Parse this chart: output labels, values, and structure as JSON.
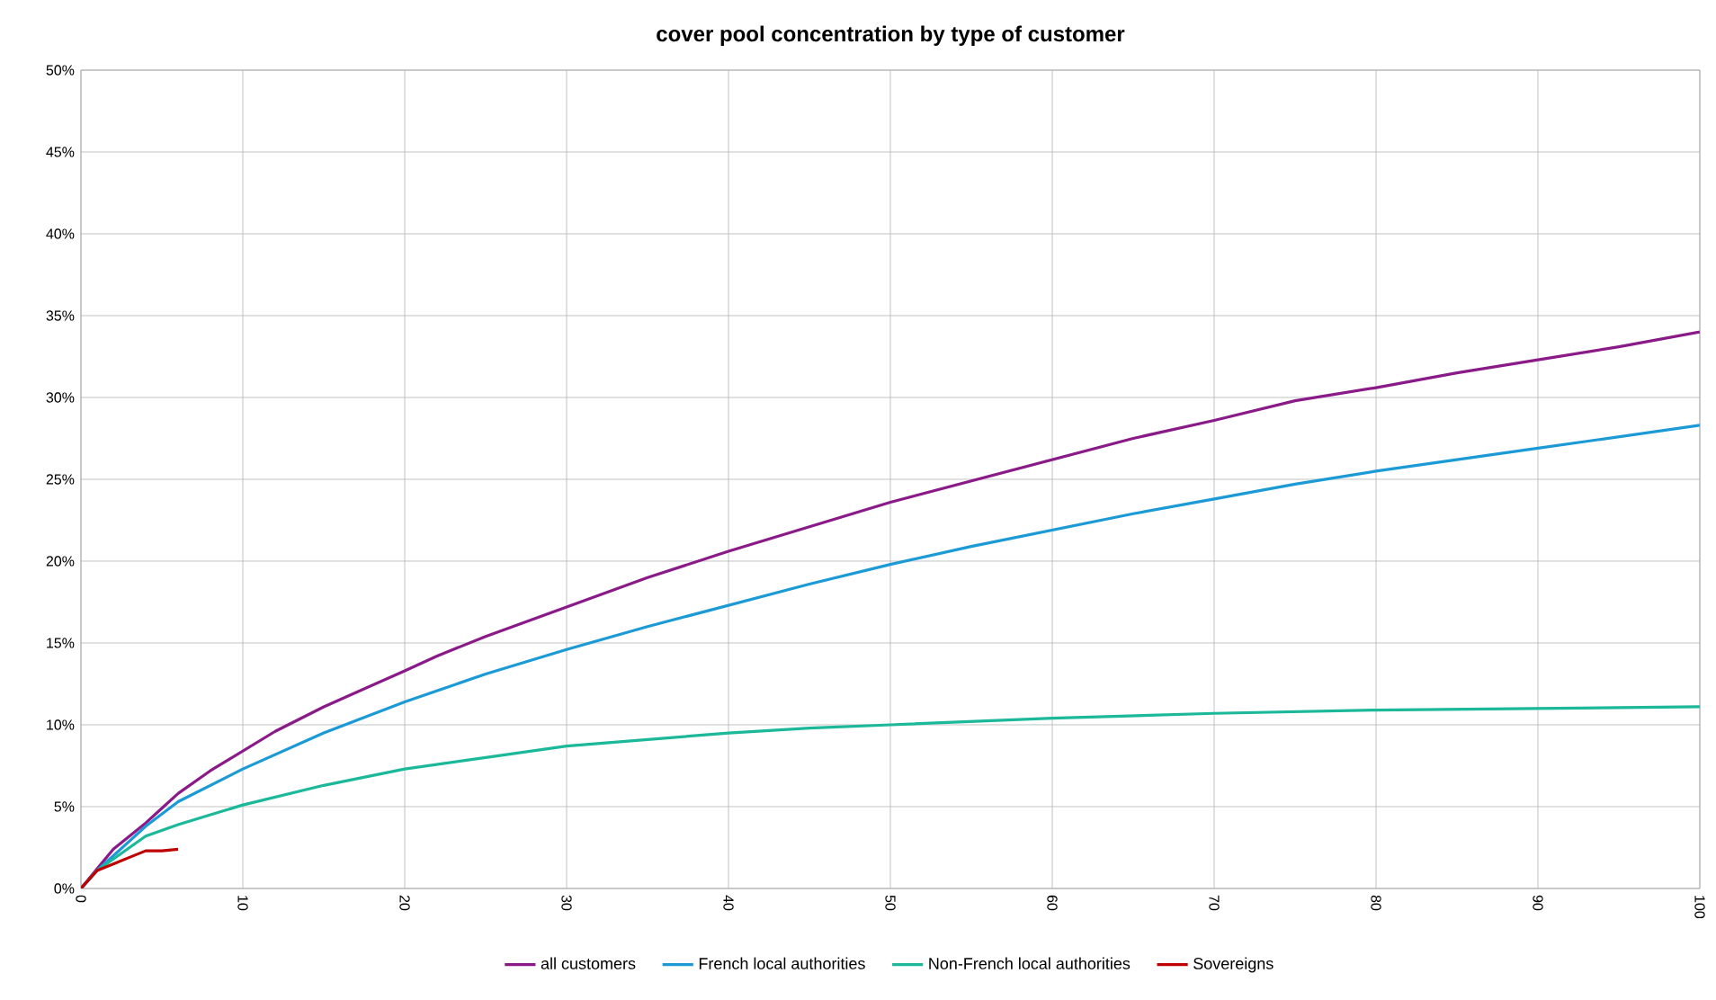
{
  "chart_data": {
    "type": "line",
    "title": "cover pool concentration by type of customer",
    "series": [
      {
        "name": "all customers",
        "color": "#8b1a89",
        "x": [
          0,
          1,
          2,
          4,
          5,
          6,
          8,
          10,
          12,
          15,
          20,
          22,
          25,
          30,
          35,
          40,
          45,
          50,
          55,
          60,
          65,
          70,
          75,
          80,
          85,
          90,
          95,
          100
        ],
        "values": [
          0,
          1.2,
          2.4,
          4.0,
          4.9,
          5.8,
          7.2,
          8.4,
          9.6,
          11.1,
          13.3,
          14.2,
          15.4,
          17.2,
          19.0,
          20.6,
          22.1,
          23.6,
          24.9,
          26.2,
          27.5,
          28.6,
          29.8,
          30.6,
          31.5,
          32.3,
          33.1,
          34.0
        ]
      },
      {
        "name": "French local authorities",
        "color": "#1b9ad6",
        "x": [
          0,
          1,
          4,
          6,
          10,
          15,
          20,
          25,
          30,
          35,
          40,
          45,
          50,
          55,
          60,
          65,
          70,
          75,
          80,
          85,
          90,
          95,
          100
        ],
        "values": [
          0,
          1.1,
          3.8,
          5.3,
          7.3,
          9.5,
          11.4,
          13.1,
          14.6,
          16.0,
          17.3,
          18.6,
          19.8,
          20.9,
          21.9,
          22.9,
          23.8,
          24.7,
          25.5,
          26.2,
          26.9,
          27.6,
          28.3
        ]
      },
      {
        "name": "Non-French local authorities",
        "color": "#1bb89a",
        "x": [
          0,
          1,
          3,
          4,
          6,
          8,
          10,
          15,
          20,
          25,
          30,
          35,
          40,
          45,
          50,
          60,
          70,
          80,
          90,
          100
        ],
        "values": [
          0,
          1.1,
          2.5,
          3.2,
          3.9,
          4.5,
          5.1,
          6.3,
          7.3,
          8.0,
          8.7,
          9.1,
          9.5,
          9.8,
          10.0,
          10.4,
          10.7,
          10.9,
          11.0,
          11.1
        ]
      },
      {
        "name": "Sovereigns",
        "color": "#c00000",
        "x": [
          0,
          1,
          2,
          3,
          4,
          5,
          6
        ],
        "values": [
          0,
          1.1,
          1.5,
          1.9,
          2.3,
          2.3,
          2.4
        ]
      }
    ],
    "xlim": [
      0,
      100
    ],
    "xticks": [
      0,
      10,
      20,
      30,
      40,
      50,
      60,
      70,
      80,
      90,
      100
    ],
    "ylim": [
      0,
      50
    ],
    "yticks": [
      {
        "value": 0,
        "label": "0%"
      },
      {
        "value": 5,
        "label": "5%"
      },
      {
        "value": 10,
        "label": "10%"
      },
      {
        "value": 15,
        "label": "15%"
      },
      {
        "value": 20,
        "label": "20%"
      },
      {
        "value": 25,
        "label": "25%"
      },
      {
        "value": 30,
        "label": "30%"
      },
      {
        "value": 35,
        "label": "35%"
      },
      {
        "value": 40,
        "label": "40%"
      },
      {
        "value": 45,
        "label": "45%"
      },
      {
        "value": 50,
        "label": "50%"
      }
    ],
    "grid": true,
    "legend": "bottom",
    "marker": "none",
    "line_style": "solid"
  }
}
